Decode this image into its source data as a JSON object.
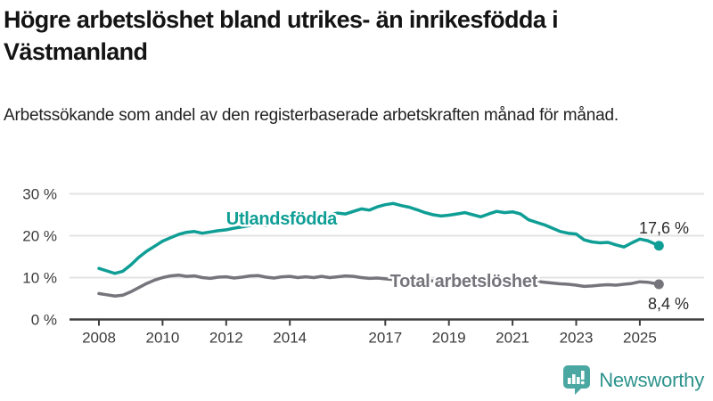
{
  "header": {
    "title": "Högre arbetslöshet bland utrikes- än inrikesfödda i Västmanland",
    "subtitle": "Arbetssökande som andel av den registerbaserade arbetskraften månad för månad."
  },
  "chart_data": {
    "type": "line",
    "xlabel": "",
    "ylabel": "",
    "ylim": [
      0,
      32
    ],
    "xlim": [
      2007.8,
      2026.1
    ],
    "grid": true,
    "x": [
      2008,
      2008.25,
      2008.5,
      2008.75,
      2009,
      2009.25,
      2009.5,
      2009.75,
      2010,
      2010.25,
      2010.5,
      2010.75,
      2011,
      2011.25,
      2011.5,
      2011.75,
      2012,
      2012.25,
      2012.5,
      2012.75,
      2013,
      2013.25,
      2013.5,
      2013.75,
      2014,
      2014.25,
      2014.5,
      2014.75,
      2015,
      2015.25,
      2015.5,
      2015.75,
      2016,
      2016.25,
      2016.5,
      2016.75,
      2017,
      2017.25,
      2017.5,
      2017.75,
      2018,
      2018.25,
      2018.5,
      2018.75,
      2019,
      2019.25,
      2019.5,
      2019.75,
      2020,
      2020.25,
      2020.5,
      2020.75,
      2021,
      2021.25,
      2021.5,
      2021.75,
      2022,
      2022.25,
      2022.5,
      2022.75,
      2023,
      2023.25,
      2023.5,
      2023.75,
      2024,
      2024.25,
      2024.5,
      2024.75,
      2025,
      2025.25,
      2025.6
    ],
    "series": [
      {
        "name": "Utlandsfödda",
        "color": "#0f9e95",
        "end_label": "17,6 %",
        "end_label_dy": -14,
        "values": [
          12.2,
          11.6,
          11.0,
          11.5,
          13.0,
          14.8,
          16.3,
          17.5,
          18.7,
          19.5,
          20.3,
          20.8,
          21.0,
          20.6,
          20.9,
          21.2,
          21.4,
          21.8,
          22.1,
          22.4,
          22.7,
          22.4,
          22.9,
          23.2,
          23.4,
          23.1,
          23.7,
          24.1,
          24.5,
          25.0,
          25.4,
          25.2,
          25.8,
          26.4,
          26.1,
          26.9,
          27.4,
          27.7,
          27.2,
          26.8,
          26.2,
          25.5,
          25.0,
          24.7,
          24.9,
          25.2,
          25.5,
          25.0,
          24.5,
          25.2,
          25.8,
          25.5,
          25.7,
          25.2,
          23.8,
          23.2,
          22.6,
          21.8,
          21.0,
          20.6,
          20.4,
          19.0,
          18.5,
          18.3,
          18.4,
          17.8,
          17.3,
          18.3,
          19.2,
          18.8,
          17.6
        ]
      },
      {
        "name": "Total arbetslöshet",
        "color": "#76757c",
        "end_label": "8,4 %",
        "end_label_dy": 28,
        "values": [
          6.2,
          5.9,
          5.6,
          5.8,
          6.6,
          7.6,
          8.6,
          9.4,
          10.0,
          10.4,
          10.6,
          10.3,
          10.4,
          10.0,
          9.8,
          10.1,
          10.2,
          9.9,
          10.1,
          10.4,
          10.5,
          10.1,
          9.9,
          10.2,
          10.3,
          10.0,
          10.2,
          10.0,
          10.3,
          10.0,
          10.2,
          10.4,
          10.3,
          10.0,
          9.8,
          9.9,
          9.7,
          9.5,
          9.6,
          9.4,
          9.5,
          9.3,
          9.2,
          9.4,
          9.5,
          9.3,
          9.4,
          9.6,
          9.8,
          10.2,
          10.0,
          9.8,
          10.0,
          9.7,
          9.4,
          9.1,
          8.9,
          8.7,
          8.5,
          8.4,
          8.2,
          7.9,
          8.0,
          8.2,
          8.3,
          8.2,
          8.4,
          8.6,
          9.0,
          8.9,
          8.4
        ]
      }
    ],
    "annotations": [
      {
        "text": "Utlandsfödda",
        "x": 2012.0,
        "y": 22.7,
        "color": "#0f9e95"
      },
      {
        "text": "Total arbetslöshet",
        "x": 2017.15,
        "y": 7.8,
        "color": "#76757c"
      }
    ],
    "yticks": [
      {
        "value": 0,
        "label": "0 %"
      },
      {
        "value": 10,
        "label": "10 %"
      },
      {
        "value": 20,
        "label": "20 %"
      },
      {
        "value": 30,
        "label": "30 %"
      }
    ],
    "xticks": [
      {
        "value": 2008,
        "label": "2008"
      },
      {
        "value": 2010,
        "label": "2010"
      },
      {
        "value": 2012,
        "label": "2012"
      },
      {
        "value": 2014,
        "label": "2014"
      },
      {
        "value": 2017,
        "label": "2017"
      },
      {
        "value": 2019,
        "label": "2019"
      },
      {
        "value": 2021,
        "label": "2021"
      },
      {
        "value": 2023,
        "label": "2023"
      },
      {
        "value": 2025,
        "label": "2025"
      }
    ],
    "legend_position": "inline-labels"
  },
  "branding": {
    "logo_text": "Newsworthy",
    "logo_color": "#4aa7a1",
    "text_color": "#2e938d"
  },
  "colors": {
    "grid": "#e3e3e3",
    "axis": "#3f3f3f",
    "tick_label": "#3c3c3c",
    "value_label": "#2b2b2b"
  }
}
